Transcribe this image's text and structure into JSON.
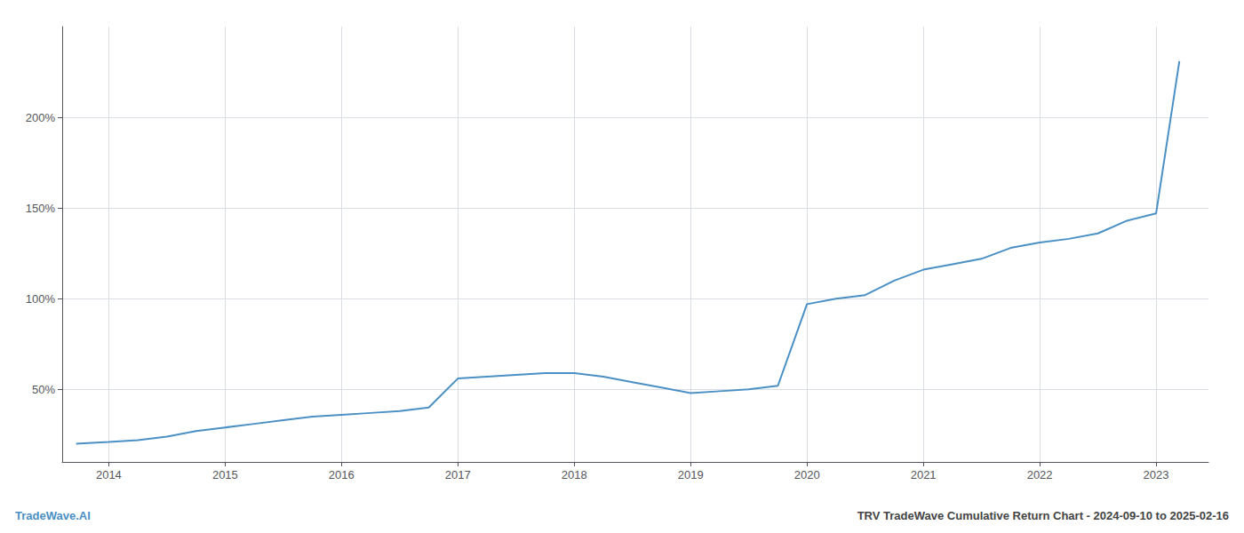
{
  "chart_data": {
    "type": "line",
    "title": "TRV TradeWave Cumulative Return Chart - 2024-09-10 to 2025-02-16",
    "annotations": [
      "TradeWave.AI"
    ],
    "color": "#4a90c4",
    "x": [
      2013.72,
      2014.0,
      2014.25,
      2014.5,
      2014.75,
      2015.0,
      2015.25,
      2015.5,
      2015.75,
      2016.0,
      2016.25,
      2016.5,
      2016.75,
      2017.0,
      2017.25,
      2017.5,
      2017.75,
      2018.0,
      2018.25,
      2018.5,
      2018.75,
      2019.0,
      2019.25,
      2019.5,
      2019.75,
      2020.0,
      2020.25,
      2020.5,
      2020.75,
      2021.0,
      2021.25,
      2021.5,
      2021.75,
      2022.0,
      2022.25,
      2022.5,
      2022.75,
      2023.0,
      2023.2
    ],
    "values": [
      20,
      21,
      22,
      24,
      27,
      29,
      31,
      33,
      35,
      36,
      37,
      38,
      40,
      56,
      57,
      58,
      59,
      59,
      57,
      54,
      51,
      48,
      49,
      50,
      52,
      97,
      100,
      102,
      110,
      116,
      119,
      122,
      128,
      131,
      133,
      136,
      143,
      147,
      231
    ],
    "xlim": [
      2013.6,
      2023.45
    ],
    "xticks": [
      2014,
      2015,
      2016,
      2017,
      2018,
      2019,
      2020,
      2021,
      2022,
      2023
    ],
    "ylim": [
      10,
      250
    ],
    "yticks": [
      {
        "value": 50,
        "label": "50%"
      },
      {
        "value": 100,
        "label": "100%"
      },
      {
        "value": 150,
        "label": "150%"
      },
      {
        "value": 200,
        "label": "200%"
      }
    ],
    "grid": true
  }
}
